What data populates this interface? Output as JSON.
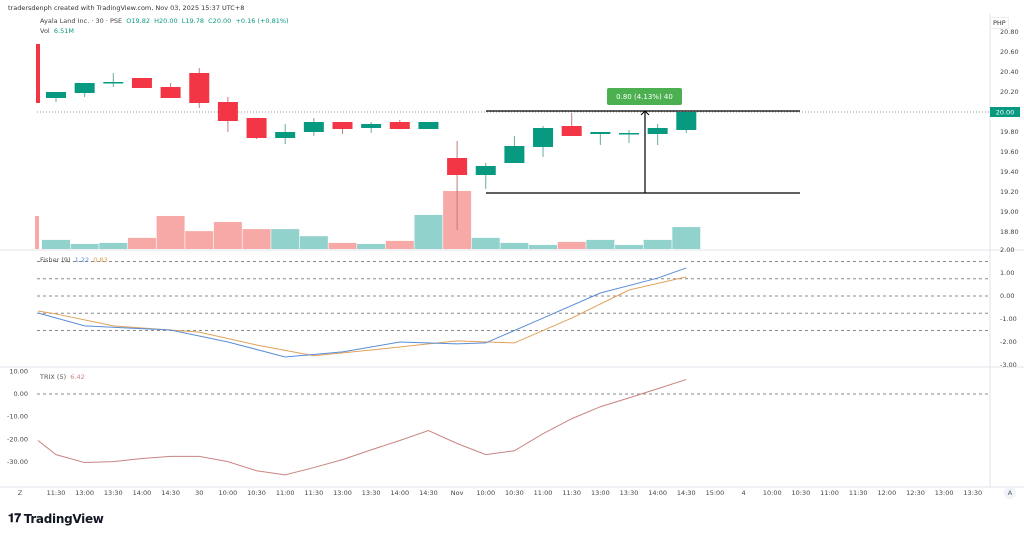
{
  "credit": "tradersdenph created with TradingView.com, Nov 03, 2025 15:37 UTC+8",
  "symbol": {
    "name": "Ayala Land Inc. · 30 · PSE",
    "open": "O19.82",
    "high": "H20.00",
    "low": "L19.78",
    "close": "C20.00",
    "change": "+0.16 (+0.81%)",
    "vol_label": "Vol",
    "vol_value": "6.51M"
  },
  "currency": "PHP",
  "colors": {
    "up": "#089981",
    "down": "#f23645",
    "vol_up": "#92d2cc",
    "vol_down": "#f7a9a7",
    "fisher": "#5b8ed6",
    "signal": "#e0a25a",
    "trix": "#c98482",
    "measure": "#4caf50"
  },
  "price_axis": {
    "labels": [
      "20.80",
      "20.60",
      "20.40",
      "20.20",
      "20.00",
      "19.80",
      "19.60",
      "19.40",
      "19.20",
      "19.00",
      "18.80"
    ],
    "last_price": "20.00"
  },
  "candles": [
    {
      "o": 20.68,
      "h": 20.68,
      "l": 20.09,
      "c": 20.09,
      "v": 9.8
    },
    {
      "o": 20.14,
      "h": 20.2,
      "l": 20.1,
      "c": 20.2,
      "v": 2.7
    },
    {
      "o": 20.19,
      "h": 20.29,
      "l": 20.15,
      "c": 20.29,
      "v": 1.5
    },
    {
      "o": 20.29,
      "h": 20.39,
      "l": 20.25,
      "c": 20.3,
      "v": 1.8
    },
    {
      "o": 20.34,
      "h": 20.34,
      "l": 20.24,
      "c": 20.24,
      "v": 3.3
    },
    {
      "o": 20.25,
      "h": 20.29,
      "l": 20.14,
      "c": 20.14,
      "v": 9.8
    },
    {
      "o": 20.39,
      "h": 20.44,
      "l": 20.04,
      "c": 20.09,
      "v": 5.3
    },
    {
      "o": 20.1,
      "h": 20.15,
      "l": 19.8,
      "c": 19.91,
      "v": 8.0
    },
    {
      "o": 19.94,
      "h": 19.94,
      "l": 19.73,
      "c": 19.74,
      "v": 5.9
    },
    {
      "o": 19.74,
      "h": 19.88,
      "l": 19.68,
      "c": 19.8,
      "v": 5.9
    },
    {
      "o": 19.8,
      "h": 19.94,
      "l": 19.76,
      "c": 19.9,
      "v": 3.8
    },
    {
      "o": 19.9,
      "h": 19.9,
      "l": 19.78,
      "c": 19.83,
      "v": 1.8
    },
    {
      "o": 19.84,
      "h": 19.9,
      "l": 19.79,
      "c": 19.88,
      "v": 1.5
    },
    {
      "o": 19.9,
      "h": 19.92,
      "l": 19.83,
      "c": 19.83,
      "v": 2.4
    },
    {
      "o": 19.83,
      "h": 19.9,
      "l": 19.83,
      "c": 19.9,
      "v": 10.1
    },
    {
      "o": 19.54,
      "h": 19.71,
      "l": 18.82,
      "c": 19.37,
      "v": 17.2
    },
    {
      "o": 19.37,
      "h": 19.49,
      "l": 19.23,
      "c": 19.46,
      "v": 3.3
    },
    {
      "o": 19.49,
      "h": 19.76,
      "l": 19.49,
      "c": 19.66,
      "v": 1.8
    },
    {
      "o": 19.65,
      "h": 19.86,
      "l": 19.55,
      "c": 19.84,
      "v": 1.2
    },
    {
      "o": 19.86,
      "h": 19.99,
      "l": 19.76,
      "c": 19.76,
      "v": 2.1
    },
    {
      "o": 19.78,
      "h": 19.8,
      "l": 19.67,
      "c": 19.8,
      "v": 2.7
    },
    {
      "o": 19.79,
      "h": 19.82,
      "l": 19.69,
      "c": 19.79,
      "v": 1.2
    },
    {
      "o": 19.78,
      "h": 19.88,
      "l": 19.67,
      "c": 19.84,
      "v": 2.7
    },
    {
      "o": 19.82,
      "h": 20.0,
      "l": 19.79,
      "c": 20.0,
      "v": 6.51
    }
  ],
  "measure": {
    "label": "0.80 (4.13%) 40",
    "from": 19.2,
    "to": 20.0
  },
  "fisher": {
    "legend": "Fisher (9)",
    "value1": "1.22",
    "value2": "0.83",
    "axis": [
      "2.00",
      "1.00",
      "0.00",
      "-1.00",
      "-2.00",
      "-3.00"
    ],
    "levels": [
      1.5,
      0.75,
      0,
      -0.75,
      -1.5
    ],
    "fisher": [
      [
        0,
        -0.74
      ],
      [
        2,
        -1.3
      ],
      [
        5,
        -1.48
      ],
      [
        7,
        -2.0
      ],
      [
        9,
        -2.65
      ],
      [
        11,
        -2.43
      ],
      [
        13,
        -2.0
      ],
      [
        15,
        -2.08
      ],
      [
        16,
        -2.04
      ],
      [
        18,
        -0.96
      ],
      [
        20,
        0.13
      ],
      [
        22,
        0.78
      ],
      [
        23,
        1.22
      ]
    ],
    "trigger": [
      [
        0,
        -0.65
      ],
      [
        1,
        -0.78
      ],
      [
        3,
        -1.3
      ],
      [
        6,
        -1.57
      ],
      [
        8,
        -2.13
      ],
      [
        10,
        -2.6
      ],
      [
        12,
        -2.35
      ],
      [
        14,
        -2.08
      ],
      [
        15,
        -1.95
      ],
      [
        17,
        -2.04
      ],
      [
        19,
        -0.96
      ],
      [
        21,
        0.26
      ],
      [
        23,
        0.83
      ]
    ]
  },
  "trix": {
    "legend": "TRIX (5)",
    "value": "6.42",
    "axis": [
      "10.00",
      "0.00",
      "-10.00",
      "-20.00",
      "-30.00"
    ],
    "values": [
      -20.5,
      -26.7,
      -30.2,
      -29.8,
      -28.4,
      -27.5,
      -27.5,
      -29.8,
      -33.8,
      -35.6,
      -32.4,
      -28.9,
      -24.6,
      -20.5,
      -16.1,
      -21.8,
      -26.7,
      -25,
      -17.5,
      -10.9,
      -5.6,
      -1.7,
      2.3,
      6.42
    ]
  },
  "time_axis": {
    "first": "Z",
    "labels": [
      "11:30",
      "13:00",
      "13:30",
      "14:00",
      "14:30",
      "30",
      "10:00",
      "10:30",
      "11:00",
      "11:30",
      "13:00",
      "13:30",
      "14:00",
      "14:30",
      "Nov",
      "10:00",
      "10:30",
      "11:00",
      "11:30",
      "13:00",
      "13:30",
      "14:00",
      "14:30",
      "15:00",
      "4",
      "10:00",
      "10:30",
      "11:00",
      "11:30",
      "12:00",
      "12:30",
      "13:00",
      "13:30"
    ],
    "auto_button": "A"
  },
  "logo": "TradingView"
}
